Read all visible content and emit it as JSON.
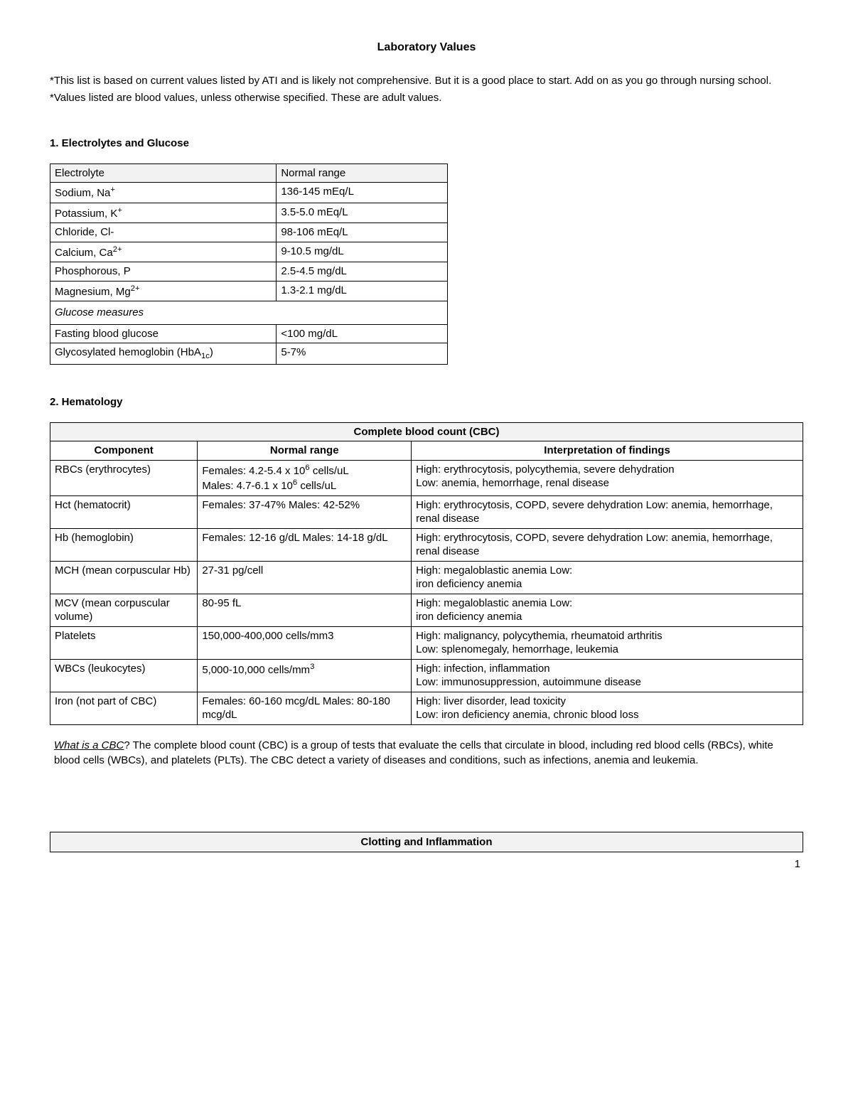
{
  "title": "Laboratory Values",
  "notes": {
    "n1": "*This list is based on current values listed by ATI and is likely not comprehensive. But it is a good place to start. Add on as you go through nursing school.",
    "n2": "*Values listed are blood values, unless otherwise specified. These are adult values."
  },
  "section1": {
    "heading": "1. Electrolytes and Glucose",
    "headers": {
      "h1": "Electrolyte",
      "h2": "Normal range"
    },
    "rows": {
      "r1": {
        "name_html": "Sodium, Na<sup>+</sup>",
        "range": "136-145 mEq/L"
      },
      "r2": {
        "name_html": "Potassium, K<sup>+</sup>",
        "range": "3.5-5.0 mEq/L"
      },
      "r3": {
        "name_html": "Chloride, Cl-",
        "range": "98-106 mEq/L"
      },
      "r4": {
        "name_html": "Calcium, Ca<sup>2+</sup>",
        "range": "9-10.5 mg/dL"
      },
      "r5": {
        "name_html": "Phosphorous, P",
        "range": "2.5-4.5 mg/dL"
      },
      "r6": {
        "name_html": "Magnesium, Mg<sup>2+</sup>",
        "range": "1.3-2.1 mg/dL"
      }
    },
    "subheading": "Glucose measures",
    "rows2": {
      "r7": {
        "name_html": "Fasting blood glucose",
        "range": "<100 mg/dL"
      },
      "r8": {
        "name_html": "Glycosylated hemoglobin (HbA<sub>1c</sub>)",
        "range": "5-7%"
      }
    }
  },
  "section2": {
    "heading": "2. Hematology",
    "table_title": "Complete blood count (CBC)",
    "headers": {
      "h1": "Component",
      "h2": "Normal range",
      "h3": "Interpretation of findings"
    },
    "rows": {
      "r1": {
        "comp": "RBCs (erythrocytes)",
        "range_html": "Females: 4.2-5.4 x 10<sup>6</sup> cells/uL<br>Males: 4.7-6.1 x 10<sup>6</sup> cells/uL",
        "interp_html": "High: erythrocytosis, polycythemia, severe dehydration<br>Low: anemia, hemorrhage, renal disease"
      },
      "r2": {
        "comp": "Hct (hematocrit)",
        "range_html": "Females: 37-47% Males: 42-52%",
        "interp_html": "High: erythrocytosis, COPD, severe dehydration Low: anemia, hemorrhage, renal disease"
      },
      "r3": {
        "comp": "Hb (hemoglobin)",
        "range_html": "Females: 12-16 g/dL Males: 14-18 g/dL",
        "interp_html": "High: erythrocytosis, COPD, severe dehydration Low: anemia, hemorrhage, renal disease"
      },
      "r4": {
        "comp": "MCH (mean corpuscular Hb)",
        "range_html": "27-31 pg/cell",
        "interp_html": "High: megaloblastic anemia Low:<br>iron deficiency anemia"
      },
      "r5": {
        "comp": "MCV (mean corpuscular volume)",
        "range_html": "80-95 fL",
        "interp_html": "High: megaloblastic anemia Low:<br>iron deficiency anemia"
      },
      "r6": {
        "comp": "Platelets",
        "range_html": "150,000-400,000 cells/mm3",
        "interp_html": "High: malignancy, polycythemia, rheumatoid arthritis<br>Low: splenomegaly, hemorrhage, leukemia"
      },
      "r7": {
        "comp": "WBCs (leukocytes)",
        "range_html": "5,000-10,000 cells/mm<sup>3</sup>",
        "interp_html": "High: infection, inflammation<br>Low: immunosuppression, autoimmune disease"
      },
      "r8": {
        "comp": "Iron (not part of CBC)",
        "range_html": "Females: 60-160 mcg/dL Males: 80-180 mcg/dL",
        "interp_html": "High: liver disorder, lead toxicity<br>Low: iron deficiency anemia, chronic blood loss"
      }
    },
    "para_html": "<span class=\"underline-italic\">What is a CBC</span>? The complete blood count (CBC) is a group of tests that evaluate the cells that circulate in blood, including red blood cells (RBCs), white blood cells (WBCs), and platelets (PLTs). The CBC detect a variety of diseases and conditions, such as infections, anemia and leukemia."
  },
  "section3": {
    "title": "Clotting and Inflammation"
  },
  "page_number": "1"
}
